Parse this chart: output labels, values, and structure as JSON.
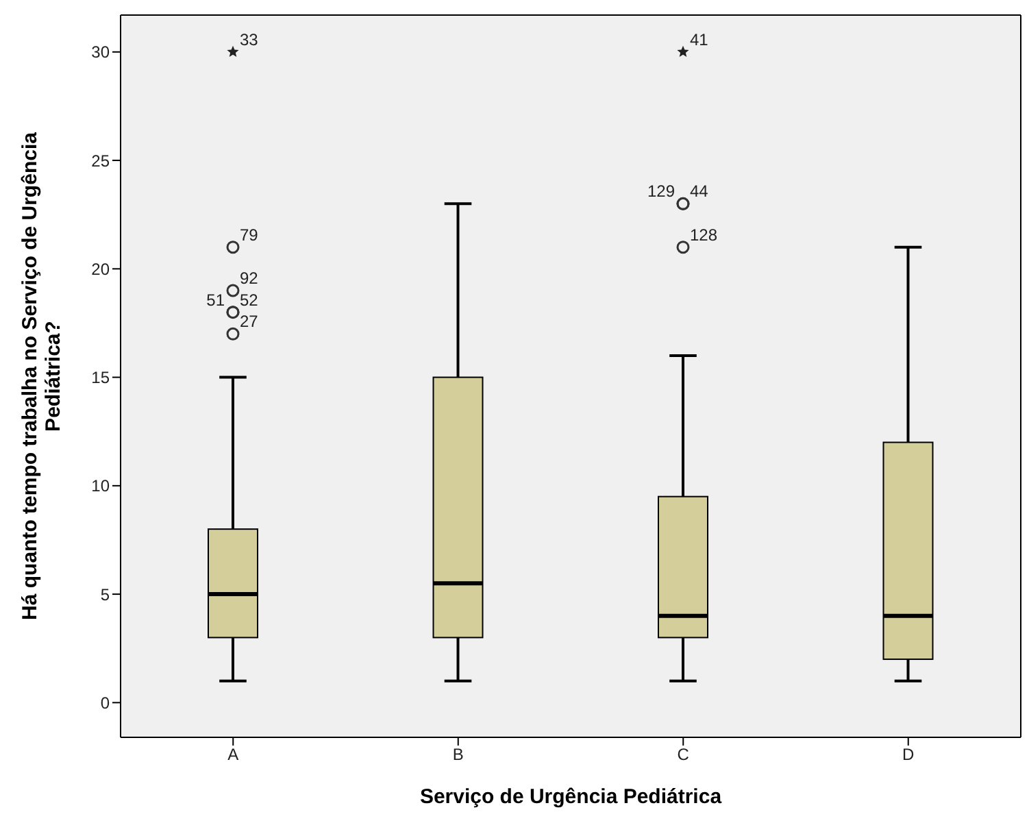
{
  "chart_data": {
    "type": "box",
    "xlabel": "Serviço de Urgência Pediátrica",
    "ylabel": "Há quanto tempo trabalha no Serviço de Urgência Pediátrica?",
    "categories": [
      "A",
      "B",
      "C",
      "D"
    ],
    "color": "#d4cf9a",
    "boxes": [
      {
        "low": 1,
        "q1": 3,
        "median": 5,
        "q3": 8,
        "high": 15,
        "outliers": [
          30,
          21,
          19,
          18,
          18,
          17
        ]
      },
      {
        "low": 1,
        "q1": 3,
        "median": 5.5,
        "q3": 15,
        "high": 23
      },
      {
        "low": 1,
        "q1": 3,
        "median": 4,
        "q3": 9.5,
        "high": 16,
        "outliers": [
          30,
          23,
          23,
          21
        ]
      },
      {
        "low": 1,
        "q1": 2,
        "median": 4,
        "q3": 12,
        "high": 21
      }
    ],
    "ylim": [
      -1.6,
      31.7
    ],
    "yticks": [
      0,
      5,
      10,
      15,
      20,
      25,
      30
    ],
    "annotations": [
      "33",
      "79",
      "92",
      "51",
      "52",
      "27",
      "41",
      "129",
      "44",
      "128"
    ],
    "grid": false,
    "legend": false
  }
}
